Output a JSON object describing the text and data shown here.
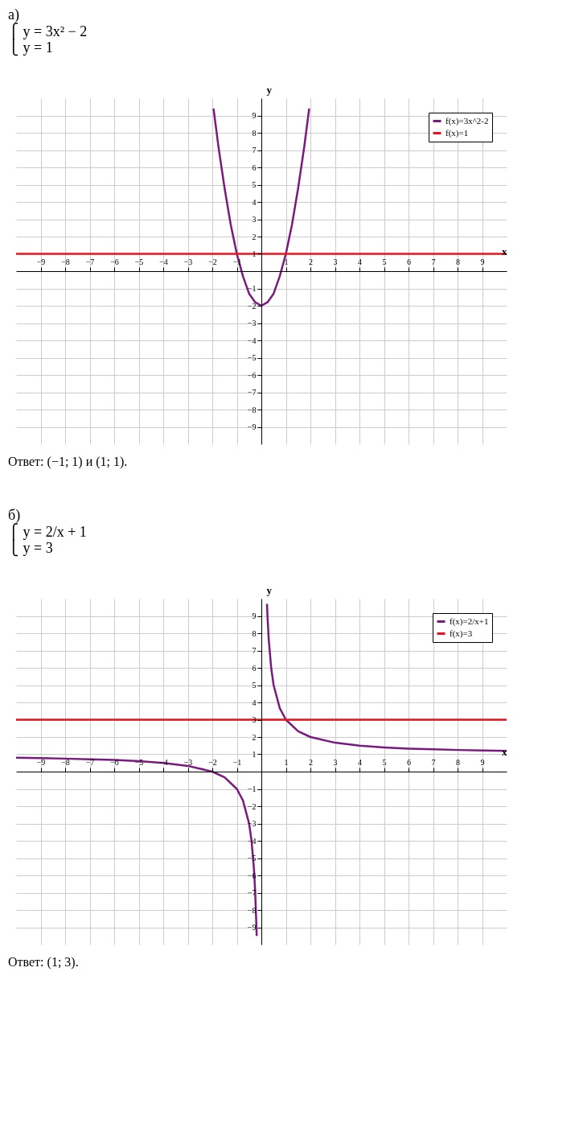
{
  "chart_data": [
    {
      "type": "line",
      "title": "а)",
      "subtitle": "⎧ y = 3x² − 2\n⎩ y = 1",
      "xlabel": "x",
      "ylabel": "y",
      "xlim": [
        -10,
        10
      ],
      "ylim": [
        -10,
        10
      ],
      "xticks": [
        -9,
        -8,
        -7,
        -6,
        -5,
        -4,
        -3,
        -2,
        -1,
        1,
        2,
        3,
        4,
        5,
        6,
        7,
        8,
        9
      ],
      "yticks": [
        -9,
        -8,
        -7,
        -6,
        -5,
        -4,
        -3,
        -2,
        -1,
        1,
        2,
        3,
        4,
        5,
        6,
        7,
        8,
        9
      ],
      "grid": true,
      "legend": "top right",
      "marker": "none",
      "line_style": "solid",
      "series": [
        {
          "name": "f(x)=3x^2-2",
          "color": "#7b1a7e",
          "x": [
            -1.95,
            -1.75,
            -1.5,
            -1.25,
            -1,
            -0.75,
            -0.5,
            -0.25,
            0,
            0.25,
            0.5,
            0.75,
            1,
            1.25,
            1.5,
            1.75,
            1.95
          ],
          "values": [
            9.4,
            7.2,
            4.8,
            2.7,
            1,
            -0.3,
            -1.3,
            -1.8,
            -2,
            -1.8,
            -1.3,
            -0.3,
            1,
            2.7,
            4.8,
            7.2,
            9.4
          ]
        },
        {
          "name": "f(x)=1",
          "color": "#e8141c",
          "x": [
            -10,
            10
          ],
          "values": [
            1,
            1
          ]
        }
      ],
      "annotations": [
        "Ответ: (−1; 1) и (1; 1)."
      ]
    },
    {
      "type": "line",
      "title": "б)",
      "subtitle": "⎧ y = 2/x + 1\n⎩ y = 3",
      "xlabel": "x",
      "ylabel": "y",
      "xlim": [
        -10,
        10
      ],
      "ylim": [
        -10,
        10
      ],
      "xticks": [
        -9,
        -8,
        -7,
        -6,
        -5,
        -4,
        -3,
        -2,
        -1,
        1,
        2,
        3,
        4,
        5,
        6,
        7,
        8,
        9
      ],
      "yticks": [
        -9,
        -8,
        -7,
        -6,
        -5,
        -4,
        -3,
        -2,
        -1,
        1,
        2,
        3,
        4,
        5,
        6,
        7,
        8,
        9
      ],
      "grid": true,
      "legend": "top right",
      "marker": "none",
      "line_style": "solid",
      "series": [
        {
          "name": "f(x)=2/x+1",
          "color": "#7b1a7e",
          "x": [
            -10,
            -9,
            -8,
            -7,
            -6,
            -5,
            -4,
            -3,
            -2,
            -1.5,
            -1,
            -0.75,
            -0.5,
            -0.4,
            -0.3,
            -0.25,
            -0.2,
            -0.19,
            0,
            0.23,
            0.25,
            0.3,
            0.4,
            0.5,
            0.75,
            1,
            1.5,
            2,
            3,
            4,
            5,
            6,
            7,
            8,
            9,
            10
          ],
          "values": [
            0.8,
            0.78,
            0.75,
            0.71,
            0.67,
            0.6,
            0.5,
            0.33,
            0,
            -0.33,
            -1,
            -1.67,
            -3,
            -4,
            -5.67,
            -7,
            -9,
            -9.5,
            null,
            9.7,
            9,
            7.67,
            6,
            5,
            3.67,
            3,
            2.33,
            2,
            1.67,
            1.5,
            1.4,
            1.33,
            1.29,
            1.25,
            1.22,
            1.2
          ]
        },
        {
          "name": "f(x)=3",
          "color": "#e8141c",
          "x": [
            -10,
            10
          ],
          "values": [
            3,
            3
          ]
        }
      ],
      "annotations": [
        "Ответ: (1; 3)."
      ]
    }
  ]
}
